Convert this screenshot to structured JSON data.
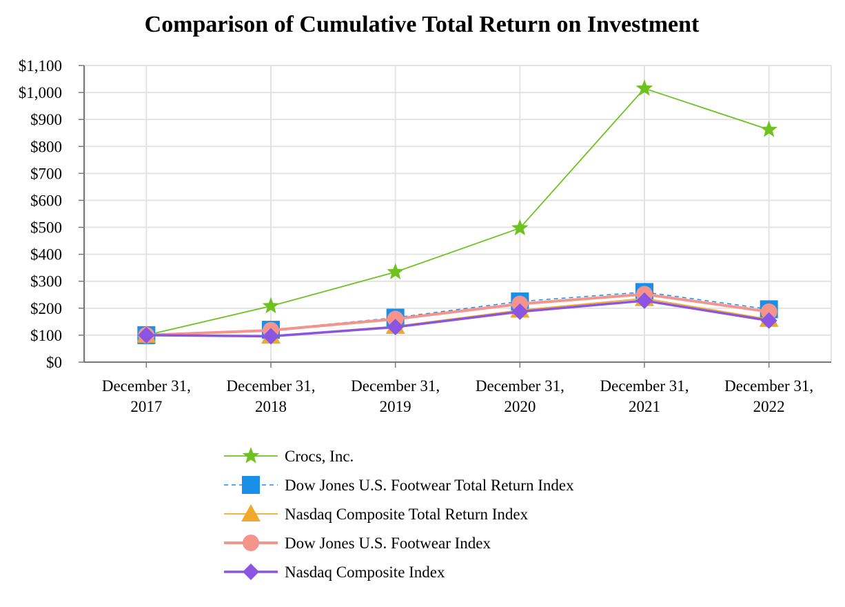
{
  "chart_data": {
    "type": "line",
    "title": "Comparison of Cumulative Total Return on Investment",
    "xlabel": "",
    "ylabel": "",
    "ylim": [
      0,
      1100
    ],
    "yticks": [
      0,
      100,
      200,
      300,
      400,
      500,
      600,
      700,
      800,
      900,
      1000,
      1100
    ],
    "ytick_labels": [
      "$0",
      "$100",
      "$200",
      "$300",
      "$400",
      "$500",
      "$600",
      "$700",
      "$800",
      "$900",
      "$1,000",
      "$1,100"
    ],
    "grid": true,
    "legend_position": "bottom-center",
    "categories": [
      [
        "December 31,",
        "2017"
      ],
      [
        "December 31,",
        "2018"
      ],
      [
        "December 31,",
        "2019"
      ],
      [
        "December 31,",
        "2020"
      ],
      [
        "December 31,",
        "2021"
      ],
      [
        "December 31,",
        "2022"
      ]
    ],
    "series": [
      {
        "name": "Crocs, Inc.",
        "color": "#6ec21f",
        "marker": "star",
        "dash": false,
        "values": [
          100,
          208,
          334,
          497,
          1015,
          862
        ]
      },
      {
        "name": "Dow Jones U.S. Footwear Total Return Index",
        "color": "#1a8fe8",
        "marker": "square",
        "dash": true,
        "values": [
          100,
          120,
          165,
          225,
          260,
          196
        ]
      },
      {
        "name": "Nasdaq Composite Total Return Index",
        "color": "#f0a92a",
        "marker": "triangle",
        "dash": false,
        "values": [
          100,
          97,
          133,
          193,
          236,
          159
        ]
      },
      {
        "name": "Dow Jones U.S. Footwear Index",
        "color": "#f5948c",
        "marker": "circle",
        "dash": false,
        "values": [
          100,
          118,
          160,
          216,
          252,
          187
        ]
      },
      {
        "name": "Nasdaq Composite Index",
        "color": "#8a55e0",
        "marker": "diamond",
        "dash": false,
        "values": [
          100,
          96,
          130,
          187,
          228,
          154
        ]
      }
    ]
  }
}
